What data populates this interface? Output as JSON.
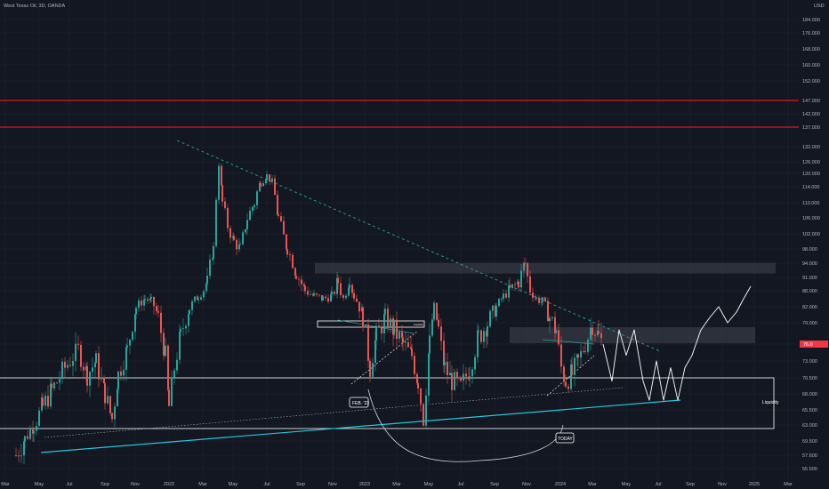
{
  "header": {
    "symbol_title": "West Texas Oil, 3D, OANDA",
    "currency": "USD"
  },
  "chart_data": {
    "type": "candlestick",
    "title": "West Texas Oil, 3D, OANDA",
    "currency": "USD",
    "y_ticks": [
      "184.000",
      "176.000",
      "168.000",
      "160.000",
      "152.000",
      "147.000",
      "142.000",
      "137.000",
      "132.000",
      "126.000",
      "120.000",
      "114.000",
      "110.000",
      "106.000",
      "102.000",
      "98.000",
      "94.000",
      "91.000",
      "88.000",
      "82.000",
      "79.000",
      "76.000",
      "73.000",
      "70.500",
      "68.000",
      "65.500",
      "63.000",
      "59.500",
      "57.600",
      "55.500"
    ],
    "x_ticks": [
      "Mar",
      "May",
      "Jul",
      "Sep",
      "Nov",
      "2022",
      "Mar",
      "May",
      "Jul",
      "Sep",
      "Nov",
      "2023",
      "Mar",
      "May",
      "Jul",
      "Sep",
      "Nov",
      "2024",
      "Mar",
      "May",
      "Jul",
      "Sep",
      "Nov",
      "2025",
      "Mar"
    ],
    "price_label": "76.0",
    "horizontal_levels": [
      147.0,
      137.0
    ],
    "zones": [
      {
        "y_top": 93.5,
        "y_bottom": 91.5
      },
      {
        "y_top": 81.5,
        "y_bottom": 78.5
      },
      {
        "y_top": 74.2,
        "y_bottom": 62.8,
        "label": "Liquidity"
      }
    ],
    "annotations": [
      "Liquidity",
      "FEB. '23",
      "TODAY"
    ],
    "price_path": [
      [
        0,
        57.6
      ],
      [
        10,
        60.0
      ],
      [
        20,
        63.0
      ],
      [
        30,
        66.0
      ],
      [
        40,
        68.5
      ],
      [
        55,
        72.0
      ],
      [
        70,
        75.0
      ],
      [
        80,
        71.0
      ],
      [
        90,
        73.0
      ],
      [
        100,
        68.0
      ],
      [
        108,
        64.0
      ],
      [
        115,
        71.0
      ],
      [
        125,
        75.0
      ],
      [
        135,
        82.0
      ],
      [
        145,
        85.0
      ],
      [
        152,
        84.0
      ],
      [
        160,
        80.0
      ],
      [
        168,
        74.0
      ],
      [
        172,
        66.0
      ],
      [
        178,
        72.0
      ],
      [
        185,
        77.0
      ],
      [
        195,
        82.0
      ],
      [
        205,
        86.0
      ],
      [
        215,
        90.0
      ],
      [
        222,
        98.0
      ],
      [
        228,
        125.0
      ],
      [
        232,
        110.0
      ],
      [
        238,
        104.0
      ],
      [
        245,
        100.0
      ],
      [
        252,
        98.0
      ],
      [
        260,
        106.0
      ],
      [
        268,
        110.0
      ],
      [
        275,
        116.0
      ],
      [
        282,
        119.0
      ],
      [
        288,
        116.0
      ],
      [
        295,
        106.0
      ],
      [
        305,
        98.0
      ],
      [
        315,
        92.0
      ],
      [
        325,
        88.0
      ],
      [
        335,
        86.0
      ],
      [
        345,
        85.0
      ],
      [
        355,
        86.0
      ],
      [
        362,
        90.0
      ],
      [
        368,
        85.0
      ],
      [
        375,
        91.0
      ],
      [
        380,
        86.0
      ],
      [
        390,
        80.0
      ],
      [
        398,
        72.0
      ],
      [
        405,
        77.0
      ],
      [
        415,
        80.0
      ],
      [
        425,
        78.0
      ],
      [
        435,
        76.0
      ],
      [
        445,
        74.0
      ],
      [
        452,
        70.0
      ],
      [
        458,
        64.0
      ],
      [
        465,
        76.0
      ],
      [
        470,
        82.0
      ],
      [
        475,
        78.0
      ],
      [
        482,
        72.0
      ],
      [
        490,
        70.0
      ],
      [
        500,
        69.0
      ],
      [
        510,
        72.0
      ],
      [
        520,
        77.0
      ],
      [
        530,
        79.0
      ],
      [
        540,
        82.0
      ],
      [
        548,
        86.0
      ],
      [
        555,
        88.0
      ],
      [
        565,
        90.0
      ],
      [
        572,
        94.0
      ],
      [
        578,
        88.0
      ],
      [
        585,
        85.0
      ],
      [
        592,
        84.0
      ],
      [
        600,
        80.0
      ],
      [
        607,
        78.0
      ],
      [
        613,
        72.0
      ],
      [
        618,
        70.0
      ],
      [
        625,
        71.0
      ],
      [
        632,
        73.0
      ],
      [
        640,
        76.0
      ],
      [
        648,
        79.0
      ],
      [
        655,
        77.0
      ],
      [
        660,
        76.0
      ]
    ],
    "projection_path": [
      [
        660,
        76.0
      ],
      [
        670,
        70.0
      ],
      [
        678,
        78.0
      ],
      [
        686,
        74.0
      ],
      [
        695,
        78.0
      ],
      [
        705,
        70.0
      ],
      [
        712,
        67.0
      ],
      [
        720,
        73.0
      ],
      [
        728,
        67.0
      ],
      [
        736,
        72.0
      ],
      [
        744,
        67.0
      ],
      [
        752,
        72.0
      ],
      [
        760,
        74.0
      ],
      [
        770,
        78.0
      ],
      [
        780,
        80.0
      ],
      [
        790,
        82.0
      ],
      [
        800,
        79.0
      ],
      [
        810,
        81.0
      ],
      [
        818,
        85.0
      ],
      [
        826,
        89.0
      ]
    ]
  }
}
